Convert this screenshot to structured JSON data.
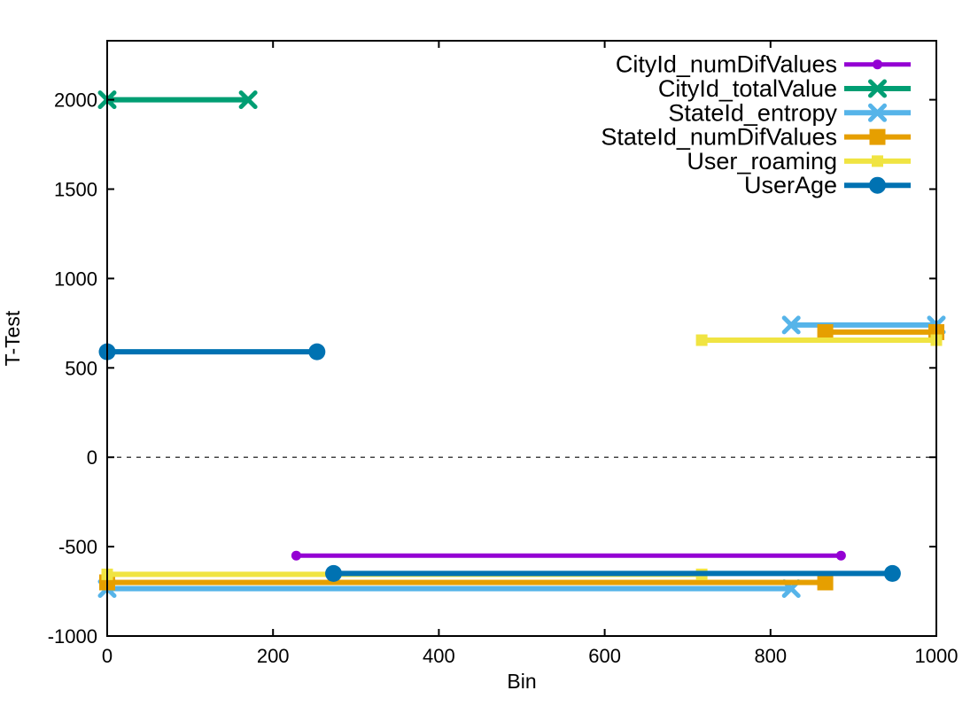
{
  "figure": {
    "background": "#ffffff",
    "border_color": "#000000"
  },
  "chart_data": {
    "type": "line",
    "title": "",
    "xlabel": "Bin",
    "ylabel": "T-Test",
    "xlim": [
      0,
      1000
    ],
    "ylim": [
      -1000,
      2330
    ],
    "xticks": [
      0,
      200,
      400,
      600,
      800,
      1000
    ],
    "yticks": [
      -1000,
      -500,
      0,
      500,
      1000,
      1500,
      2000
    ],
    "grid": "off",
    "zero_line": {
      "y": 0,
      "style": "dashed",
      "color": "#444444"
    },
    "legend_position": "top-right-inside",
    "series": [
      {
        "name": "CityId_numDifValues",
        "color": "#9400d3",
        "marker": "circle",
        "marker_size": 5.5,
        "line_width": 5,
        "segments": [
          {
            "x1": 228,
            "x2": 885,
            "y": -550
          }
        ]
      },
      {
        "name": "CityId_totalValue",
        "color": "#009e73",
        "marker": "x",
        "marker_size": 8,
        "line_width": 6,
        "segments": [
          {
            "x1": 0,
            "x2": 170,
            "y": 2000
          }
        ]
      },
      {
        "name": "StateId_entropy",
        "color": "#56b4e9",
        "marker": "x",
        "marker_size": 8,
        "line_width": 6,
        "segments": [
          {
            "x1": 825,
            "x2": 1000,
            "y": 740
          },
          {
            "x1": 0,
            "x2": 825,
            "y": -735
          }
        ]
      },
      {
        "name": "StateId_numDifValues",
        "color": "#e69f00",
        "marker": "square",
        "marker_size": 9,
        "line_width": 6,
        "segments": [
          {
            "x1": 866,
            "x2": 1000,
            "y": 700
          },
          {
            "x1": 0,
            "x2": 866,
            "y": -700
          }
        ]
      },
      {
        "name": "User_roaming",
        "color": "#f0e442",
        "marker": "square",
        "marker_size": 6.5,
        "line_width": 6,
        "segments": [
          {
            "x1": 717,
            "x2": 1000,
            "y": 655
          },
          {
            "x1": 0,
            "x2": 717,
            "y": -655
          }
        ]
      },
      {
        "name": "UserAge",
        "color": "#0072b2",
        "marker": "circle",
        "marker_size": 9.5,
        "line_width": 6,
        "segments": [
          {
            "x1": 0,
            "x2": 253,
            "y": 590
          },
          {
            "x1": 273,
            "x2": 947,
            "y": -650
          }
        ]
      }
    ]
  }
}
